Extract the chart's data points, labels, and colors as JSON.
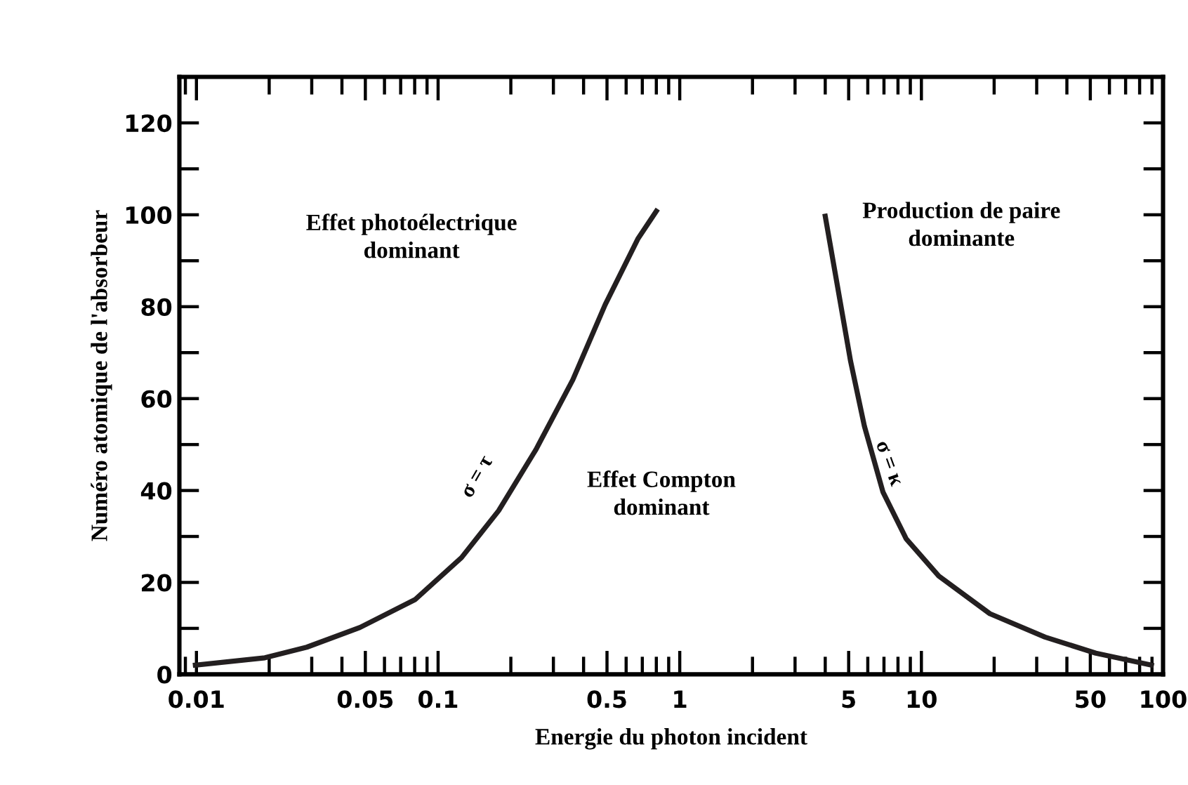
{
  "chart_data": {
    "type": "line",
    "xlabel": "Energie du photon incident",
    "ylabel": "Numéro atomique de l'absorbeur",
    "log": "x",
    "xlim": [
      0.0085,
      100
    ],
    "xticks": [
      0.01,
      0.05,
      0.1,
      0.5,
      1,
      5,
      10,
      50,
      100
    ],
    "ylim": [
      0,
      130
    ],
    "yticks": [
      0,
      {
        "value": 10,
        "label": null
      },
      20,
      {
        "value": 30,
        "label": null
      },
      40,
      {
        "value": 50,
        "label": null
      },
      60,
      {
        "value": 70,
        "label": null
      },
      80,
      {
        "value": 90,
        "label": null
      },
      100,
      {
        "value": 110,
        "label": null
      },
      120
    ],
    "grid": false,
    "marker": "none",
    "line_style": "solid",
    "series": [
      {
        "color": "#231f20",
        "x": [
          0.0099,
          0.0192,
          0.0286,
          0.0475,
          0.0805,
          0.125,
          0.178,
          0.254,
          0.361,
          0.491,
          0.67,
          0.8
        ],
        "values": [
          2.0,
          3.6,
          5.9,
          10.2,
          16.3,
          25.4,
          35.6,
          48.9,
          64.1,
          80.4,
          94.7,
          100.8
        ]
      },
      {
        "color": "#231f20",
        "x": [
          4.0,
          4.46,
          5.09,
          5.81,
          6.93,
          8.65,
          11.8,
          19.2,
          32.5,
          52.7,
          89.5
        ],
        "values": [
          99.7,
          85.5,
          68.2,
          54.0,
          39.7,
          29.5,
          21.4,
          13.2,
          8.1,
          4.6,
          2.0
        ]
      }
    ],
    "annotations": [
      "Effet photoélectrique\ndominant",
      "Effet Compton\ndominant",
      "Production de paire\ndominante",
      "σ = τ",
      "σ = κ"
    ]
  }
}
